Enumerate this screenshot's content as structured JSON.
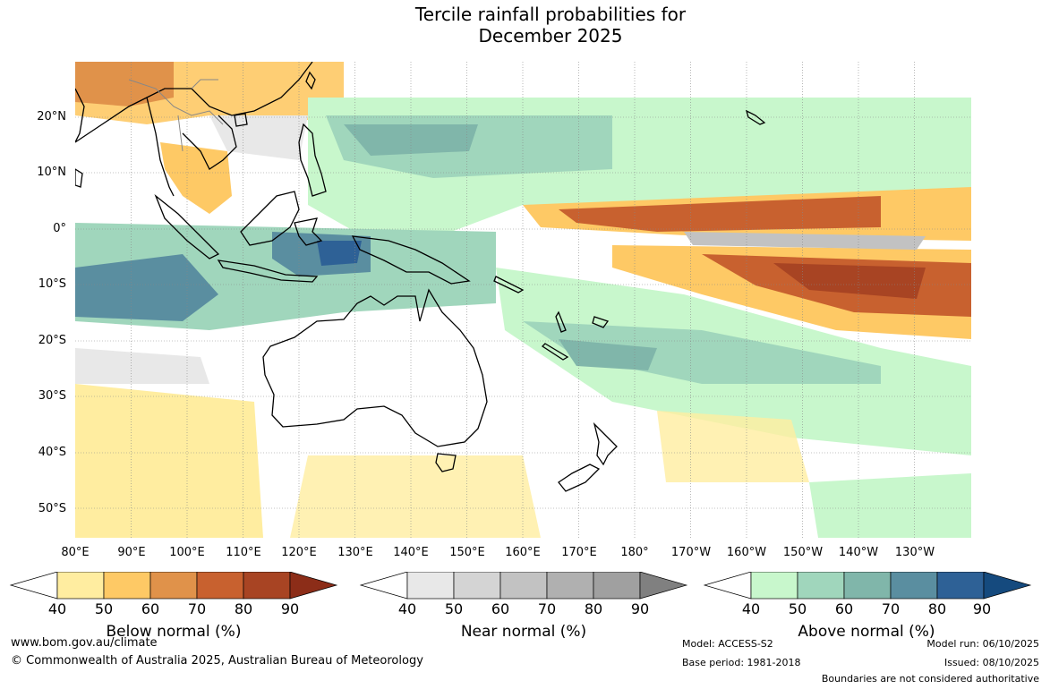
{
  "title": {
    "line1": "Tercile rainfall probabilities for",
    "line2": "December 2025"
  },
  "lat_labels": [
    "20°N",
    "10°N",
    "0°",
    "10°S",
    "20°S",
    "30°S",
    "40°S",
    "50°S"
  ],
  "lon_labels": [
    "80°E",
    "90°E",
    "100°E",
    "110°E",
    "120°E",
    "130°E",
    "140°E",
    "150°E",
    "160°E",
    "170°E",
    "180°",
    "170°W",
    "160°W",
    "150°W",
    "140°W",
    "130°W"
  ],
  "colorbars": [
    {
      "label": "Below normal (%)",
      "ticks": [
        "40",
        "50",
        "60",
        "70",
        "80",
        "90"
      ],
      "colors": [
        "#ffffff",
        "#ffeda0",
        "#fec965",
        "#e0924a",
        "#c8612f",
        "#a84423",
        "#8c2d18"
      ]
    },
    {
      "label": "Near normal (%)",
      "ticks": [
        "40",
        "50",
        "60",
        "70",
        "80",
        "90"
      ],
      "colors": [
        "#ffffff",
        "#e8e8e8",
        "#d4d4d4",
        "#c2c2c2",
        "#b0b0b0",
        "#a0a0a0",
        "#808080"
      ]
    },
    {
      "label": "Above normal (%)",
      "ticks": [
        "40",
        "50",
        "60",
        "70",
        "80",
        "90"
      ],
      "colors": [
        "#ffffff",
        "#c8f7cc",
        "#a0d6bc",
        "#80b6aa",
        "#5a8ea0",
        "#2e6196",
        "#154a7e"
      ]
    }
  ],
  "footer": {
    "website": "www.bom.gov.au/climate",
    "copyright": "© Commonwealth of Australia 2025, Australian Bureau of Meteorology",
    "model": "Model: ACCESS-S2",
    "base_period": "Base period: 1981-2018",
    "model_run": "Model run: 06/10/2025",
    "issued": "Issued: 08/10/2025",
    "disclaimer": "Boundaries are not considered authoritative"
  }
}
